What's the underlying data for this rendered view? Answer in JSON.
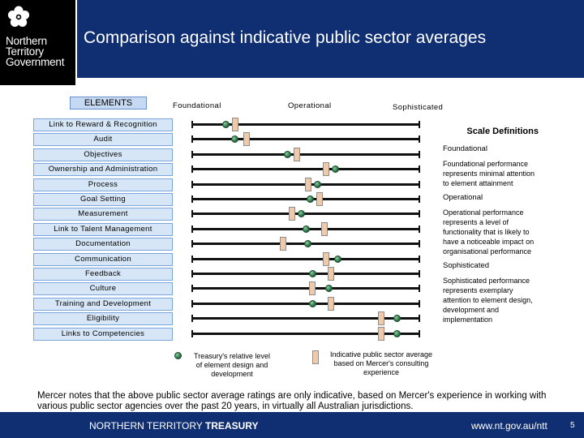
{
  "header": {
    "logo_lines": [
      "Northern",
      "Territory",
      "Government"
    ],
    "title": "Comparison against indicative public sector averages"
  },
  "columns": {
    "elements": "ELEMENTS",
    "foundational": "Foundational",
    "operational": "Operational",
    "sophisticated": "Sophisticated"
  },
  "rows": [
    {
      "label": "Link to Reward & Recognition",
      "treasury": 0.15,
      "average": 0.19
    },
    {
      "label": "Audit",
      "treasury": 0.19,
      "average": 0.24
    },
    {
      "label": "Objectives",
      "treasury": 0.42,
      "average": 0.46
    },
    {
      "label": "Ownership and Administration",
      "treasury": 0.63,
      "average": 0.59
    },
    {
      "label": "Process",
      "treasury": 0.55,
      "average": 0.51
    },
    {
      "label": "Goal Setting",
      "treasury": 0.52,
      "average": 0.56
    },
    {
      "label": "Measurement",
      "treasury": 0.48,
      "average": 0.44
    },
    {
      "label": "Link to Talent Management",
      "treasury": 0.5,
      "average": 0.58
    },
    {
      "label": "Documentation",
      "treasury": 0.51,
      "average": 0.4
    },
    {
      "label": "Communication",
      "treasury": 0.64,
      "average": 0.59
    },
    {
      "label": "Feedback",
      "treasury": 0.53,
      "average": 0.61
    },
    {
      "label": "Culture",
      "treasury": 0.6,
      "average": 0.53
    },
    {
      "label": "Training and Development",
      "treasury": 0.53,
      "average": 0.61
    },
    {
      "label": "Eligibility",
      "treasury": 0.9,
      "average": 0.83
    },
    {
      "label": "Links to Competencies",
      "treasury": 0.9,
      "average": 0.83
    }
  ],
  "legend": {
    "treasury": "Treasury's relative level of element design and development",
    "average": "Indicative public sector average based on Mercer's consulting experience"
  },
  "scale_definitions": {
    "title": "Scale Definitions",
    "items": [
      {
        "heading": "Foundational",
        "description": "Foundational performance represents minimal attention to element attainment"
      },
      {
        "heading": "Operational",
        "description": "Operational performance represents a level of functionality that is likely to have a noticeable impact on organisational performance"
      },
      {
        "heading": "Sophisticated",
        "description": "Sophisticated performance represents exemplary attention to element design, development and implementation"
      }
    ]
  },
  "note": "Mercer notes that the above public sector average ratings are only indicative, based on Mercer's experience in working with various public sector agencies over the past 20 years, in virtually all Australian jurisdictions.",
  "footer": {
    "org_prefix": "NORTHERN TERRITORY",
    "org_bold": "TREASURY",
    "url": "www.nt.gov.au/ntt",
    "page": "5"
  },
  "colors": {
    "brand_navy": "#0f2f72",
    "label_fill": "#d6e6f7",
    "average_bar": "#f0c9a8",
    "treasury_dot": "#2f7a4a"
  }
}
